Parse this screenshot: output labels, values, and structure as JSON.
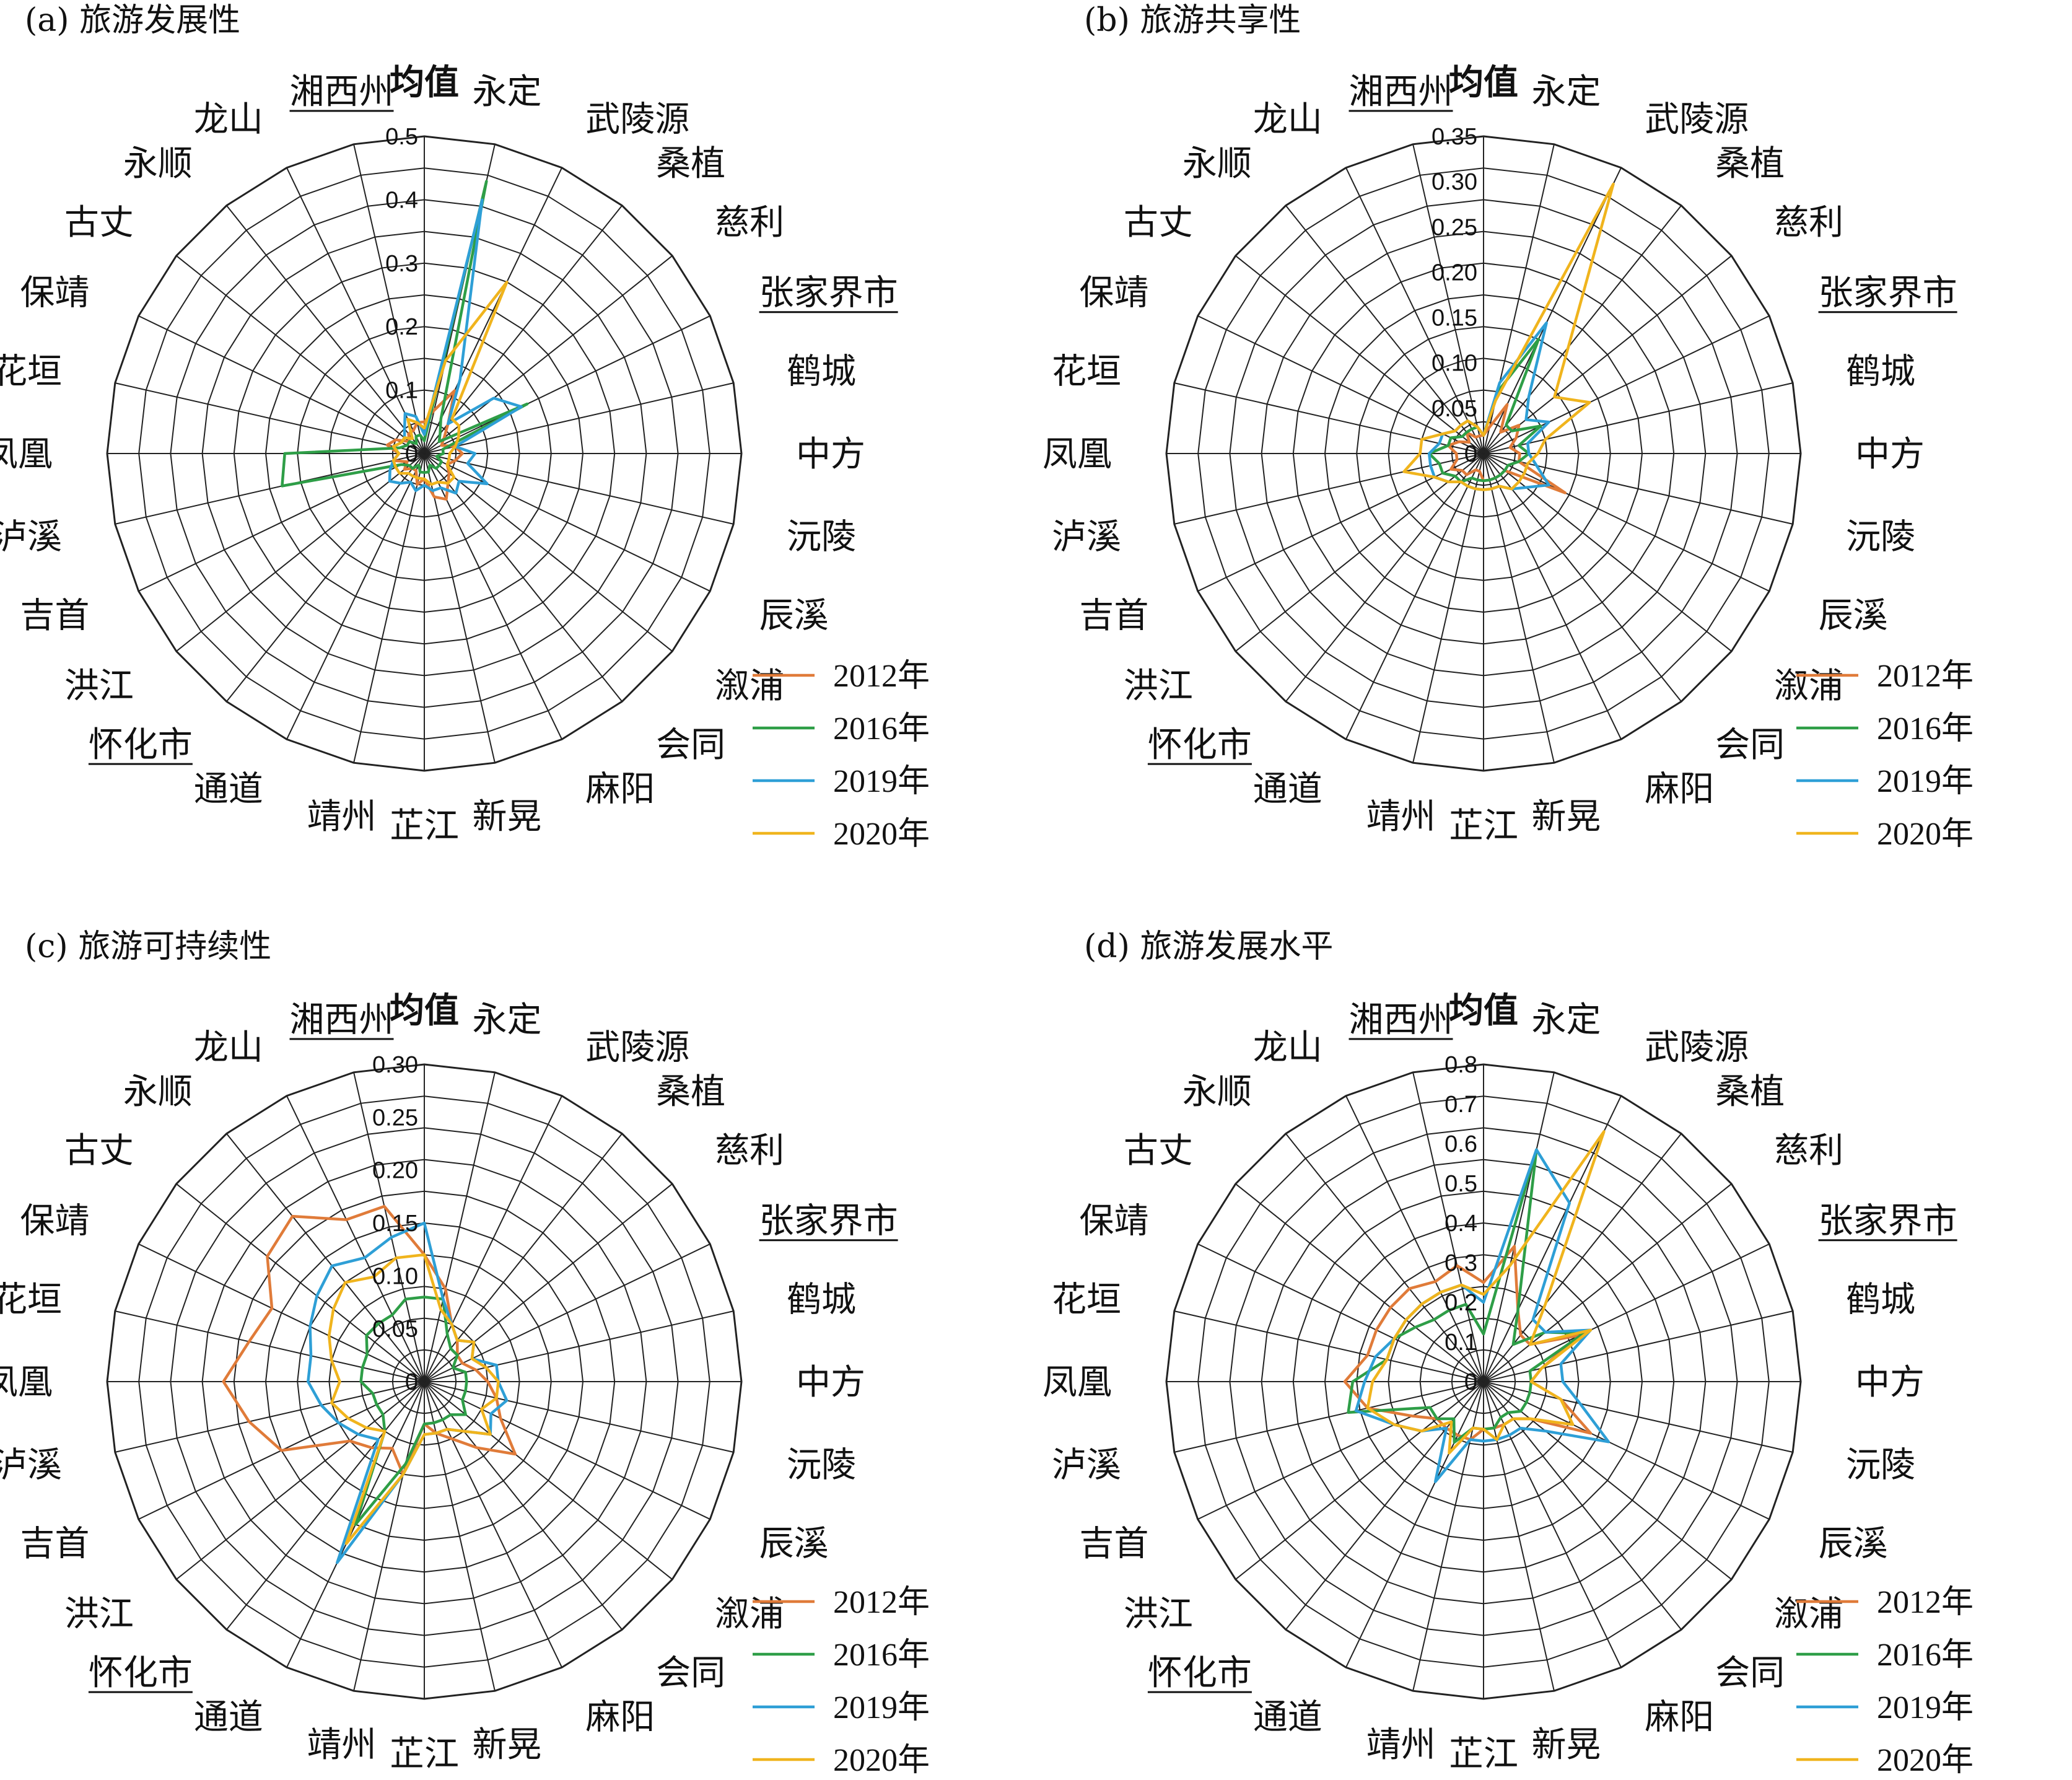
{
  "colors": {
    "2012年": "#e07b39",
    "2016年": "#2e9e47",
    "2019年": "#2e9fd6",
    "2020年": "#f0b41d"
  },
  "spokes": [
    "均值",
    "永定",
    "武陵源",
    "桑植",
    "慈利",
    "张家界市",
    "鹤城",
    "中方",
    "沅陵",
    "辰溪",
    "溆浦",
    "会同",
    "麻阳",
    "新晃",
    "芷江",
    "靖州",
    "通道",
    "怀化市",
    "洪江",
    "吉首",
    "泸溪",
    "凤凰",
    "花垣",
    "保靖",
    "古丈",
    "永顺",
    "龙山",
    "湘西州"
  ],
  "underlined_spokes": [
    "张家界市",
    "怀化市",
    "湘西州"
  ],
  "bold_spokes": [
    "均值"
  ],
  "chart_data": [
    {
      "type": "radar",
      "title": "(a) 旅游发展性",
      "rmax": 0.5,
      "ticks": [
        "0",
        "0.1",
        "0.2",
        "0.3",
        "0.4",
        "0.5"
      ],
      "tick_values": [
        0,
        0.1,
        0.2,
        0.3,
        0.4,
        0.5
      ],
      "categories": [
        "均值",
        "永定",
        "武陵源",
        "桑植",
        "慈利",
        "张家界市",
        "鹤城",
        "中方",
        "沅陵",
        "辰溪",
        "溆浦",
        "会同",
        "麻阳",
        "新晃",
        "芷江",
        "靖州",
        "通道",
        "怀化市",
        "洪江",
        "吉首",
        "泸溪",
        "凤凰",
        "花垣",
        "保靖",
        "古丈",
        "永顺",
        "龙山",
        "湘西州"
      ],
      "series": [
        {
          "name": "2012年",
          "values": [
            0.05,
            0.07,
            0.11,
            0.06,
            0.04,
            0.03,
            0.05,
            0.06,
            0.05,
            0.04,
            0.05,
            0.06,
            0.08,
            0.07,
            0.04,
            0.05,
            0.03,
            0.03,
            0.04,
            0.03,
            0.05,
            0.04,
            0.06,
            0.05,
            0.03,
            0.04,
            0.04,
            0.05
          ]
        },
        {
          "name": "2016年",
          "values": [
            0.02,
            0.44,
            0.06,
            0.04,
            0.03,
            0.18,
            0.03,
            0.03,
            0.02,
            0.03,
            0.03,
            0.03,
            0.02,
            0.03,
            0.03,
            0.03,
            0.02,
            0.03,
            0.03,
            0.04,
            0.23,
            0.22,
            0.04,
            0.03,
            0.03,
            0.02,
            0.03,
            0.03
          ]
        },
        {
          "name": "2019年",
          "values": [
            0.03,
            0.41,
            0.13,
            0.06,
            0.14,
            0.17,
            0.05,
            0.08,
            0.07,
            0.11,
            0.07,
            0.08,
            0.06,
            0.06,
            0.05,
            0.06,
            0.05,
            0.06,
            0.07,
            0.06,
            0.05,
            0.04,
            0.05,
            0.04,
            0.04,
            0.05,
            0.07,
            0.06
          ]
        },
        {
          "name": "2020年",
          "values": [
            0.04,
            0.15,
            0.3,
            0.07,
            0.07,
            0.06,
            0.05,
            0.04,
            0.04,
            0.04,
            0.06,
            0.06,
            0.05,
            0.05,
            0.04,
            0.04,
            0.04,
            0.04,
            0.05,
            0.05,
            0.05,
            0.04,
            0.05,
            0.04,
            0.04,
            0.03,
            0.06,
            0.05
          ]
        }
      ]
    },
    {
      "type": "radar",
      "title": "(b) 旅游共享性",
      "rmax": 0.35,
      "ticks": [
        "0",
        "0.05",
        "0.10",
        "0.15",
        "0.20",
        "0.25",
        "0.30",
        "0.35"
      ],
      "tick_values": [
        0,
        0.05,
        0.1,
        0.15,
        0.2,
        0.25,
        0.3,
        0.35
      ],
      "categories": [
        "均值",
        "永定",
        "武陵源",
        "桑植",
        "慈利",
        "张家界市",
        "鹤城",
        "中方",
        "沅陵",
        "辰溪",
        "溆浦",
        "会同",
        "麻阳",
        "新晃",
        "芷江",
        "靖州",
        "通道",
        "怀化市",
        "洪江",
        "吉首",
        "泸溪",
        "凤凰",
        "花垣",
        "保靖",
        "古丈",
        "永顺",
        "龙山",
        "湘西州"
      ],
      "series": [
        {
          "name": "2012年",
          "values": [
            0.02,
            0.03,
            0.06,
            0.03,
            0.05,
            0.04,
            0.03,
            0.04,
            0.04,
            0.1,
            0.03,
            0.03,
            0.03,
            0.03,
            0.03,
            0.02,
            0.02,
            0.03,
            0.03,
            0.04,
            0.03,
            0.03,
            0.04,
            0.03,
            0.02,
            0.03,
            0.02,
            0.02
          ]
        },
        {
          "name": "2016年",
          "values": [
            0.02,
            0.07,
            0.14,
            0.04,
            0.04,
            0.07,
            0.04,
            0.05,
            0.04,
            0.03,
            0.03,
            0.03,
            0.03,
            0.03,
            0.03,
            0.03,
            0.03,
            0.04,
            0.04,
            0.05,
            0.05,
            0.06,
            0.04,
            0.04,
            0.03,
            0.03,
            0.03,
            0.03
          ]
        },
        {
          "name": "2019年",
          "values": [
            0.02,
            0.08,
            0.16,
            0.08,
            0.06,
            0.08,
            0.05,
            0.05,
            0.06,
            0.08,
            0.06,
            0.05,
            0.04,
            0.04,
            0.04,
            0.04,
            0.04,
            0.04,
            0.05,
            0.06,
            0.06,
            0.06,
            0.05,
            0.05,
            0.04,
            0.04,
            0.04,
            0.03
          ]
        },
        {
          "name": "2020年",
          "values": [
            0.02,
            0.06,
            0.33,
            0.15,
            0.1,
            0.13,
            0.07,
            0.06,
            0.05,
            0.05,
            0.05,
            0.05,
            0.04,
            0.04,
            0.04,
            0.04,
            0.04,
            0.04,
            0.05,
            0.06,
            0.09,
            0.07,
            0.07,
            0.05,
            0.04,
            0.04,
            0.04,
            0.03
          ]
        }
      ]
    },
    {
      "type": "radar",
      "title": "(c) 旅游可持续性",
      "rmax": 0.3,
      "ticks": [
        "0",
        "0.05",
        "0.10",
        "0.15",
        "0.20",
        "0.25",
        "0.30"
      ],
      "tick_values": [
        0,
        0.05,
        0.1,
        0.15,
        0.2,
        0.25,
        0.3
      ],
      "categories": [
        "均值",
        "永定",
        "武陵源",
        "桑植",
        "慈利",
        "张家界市",
        "鹤城",
        "中方",
        "沅陵",
        "辰溪",
        "溆浦",
        "会同",
        "麻阳",
        "新晃",
        "芷江",
        "靖州",
        "通道",
        "怀化市",
        "洪江",
        "吉首",
        "泸溪",
        "凤凰",
        "花垣",
        "保靖",
        "古丈",
        "永顺",
        "龙山",
        "湘西州"
      ],
      "series": [
        {
          "name": "2012年",
          "values": [
            0.12,
            0.09,
            0.06,
            0.05,
            0.04,
            0.04,
            0.05,
            0.06,
            0.07,
            0.08,
            0.11,
            0.08,
            0.06,
            0.05,
            0.04,
            0.09,
            0.07,
            0.08,
            0.09,
            0.15,
            0.17,
            0.19,
            0.17,
            0.16,
            0.19,
            0.2,
            0.17,
            0.17
          ]
        },
        {
          "name": "2016年",
          "values": [
            0.08,
            0.08,
            0.05,
            0.04,
            0.04,
            0.03,
            0.04,
            0.04,
            0.04,
            0.04,
            0.05,
            0.04,
            0.04,
            0.04,
            0.04,
            0.08,
            0.15,
            0.06,
            0.05,
            0.05,
            0.05,
            0.06,
            0.06,
            0.06,
            0.07,
            0.07,
            0.07,
            0.08
          ]
        },
        {
          "name": "2019年",
          "values": [
            0.15,
            0.08,
            0.06,
            0.05,
            0.06,
            0.05,
            0.07,
            0.07,
            0.08,
            0.07,
            0.08,
            0.06,
            0.05,
            0.05,
            0.05,
            0.09,
            0.19,
            0.07,
            0.08,
            0.09,
            0.1,
            0.11,
            0.11,
            0.12,
            0.13,
            0.14,
            0.13,
            0.14
          ]
        },
        {
          "name": "2020年",
          "values": [
            0.12,
            0.07,
            0.06,
            0.05,
            0.06,
            0.05,
            0.06,
            0.07,
            0.07,
            0.06,
            0.08,
            0.06,
            0.05,
            0.05,
            0.05,
            0.09,
            0.17,
            0.06,
            0.07,
            0.08,
            0.09,
            0.08,
            0.09,
            0.1,
            0.11,
            0.12,
            0.11,
            0.12
          ]
        }
      ]
    },
    {
      "type": "radar",
      "title": "(d) 旅游发展水平",
      "rmax": 0.8,
      "ticks": [
        "0",
        "0.1",
        "0.2",
        "0.3",
        "0.4",
        "0.5",
        "0.6",
        "0.7",
        "0.8"
      ],
      "tick_values": [
        0,
        0.1,
        0.2,
        0.3,
        0.4,
        0.5,
        0.6,
        0.7,
        0.8
      ],
      "categories": [
        "均值",
        "永定",
        "武陵源",
        "桑植",
        "慈利",
        "张家界市",
        "鹤城",
        "中方",
        "沅陵",
        "辰溪",
        "溆浦",
        "会同",
        "麻阳",
        "新晃",
        "芷江",
        "靖州",
        "通道",
        "怀化市",
        "洪江",
        "吉首",
        "泸溪",
        "凤凰",
        "花垣",
        "保靖",
        "古丈",
        "永顺",
        "龙山",
        "湘西州"
      ],
      "series": [
        {
          "name": "2012年",
          "values": [
            0.25,
            0.35,
            0.2,
            0.15,
            0.15,
            0.27,
            0.15,
            0.12,
            0.2,
            0.3,
            0.15,
            0.12,
            0.12,
            0.12,
            0.12,
            0.15,
            0.15,
            0.15,
            0.15,
            0.2,
            0.3,
            0.35,
            0.3,
            0.3,
            0.3,
            0.3,
            0.28,
            0.3
          ]
        },
        {
          "name": "2016年",
          "values": [
            0.12,
            0.6,
            0.2,
            0.12,
            0.2,
            0.28,
            0.12,
            0.12,
            0.12,
            0.12,
            0.12,
            0.1,
            0.1,
            0.12,
            0.12,
            0.12,
            0.17,
            0.12,
            0.15,
            0.15,
            0.35,
            0.33,
            0.25,
            0.25,
            0.22,
            0.2,
            0.2,
            0.2
          ]
        },
        {
          "name": "2019年",
          "values": [
            0.2,
            0.6,
            0.5,
            0.2,
            0.2,
            0.3,
            0.2,
            0.2,
            0.25,
            0.35,
            0.2,
            0.15,
            0.15,
            0.15,
            0.15,
            0.15,
            0.28,
            0.15,
            0.2,
            0.25,
            0.33,
            0.3,
            0.28,
            0.25,
            0.25,
            0.25,
            0.25,
            0.25
          ]
        },
        {
          "name": "2020年",
          "values": [
            0.22,
            0.3,
            0.7,
            0.25,
            0.15,
            0.3,
            0.15,
            0.12,
            0.2,
            0.25,
            0.15,
            0.12,
            0.12,
            0.15,
            0.12,
            0.12,
            0.2,
            0.13,
            0.2,
            0.25,
            0.3,
            0.28,
            0.25,
            0.25,
            0.25,
            0.25,
            0.25,
            0.25
          ]
        }
      ]
    }
  ]
}
